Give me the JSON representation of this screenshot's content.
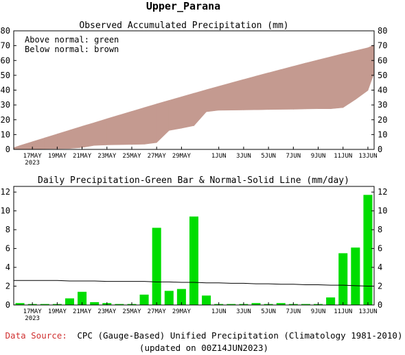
{
  "region_title": "Upper_Parana",
  "footer": {
    "source_label": "Data Source:",
    "source_text": "CPC (Gauge-Based) Unified Precipitation (Climatology 1981-2010)",
    "updated": "(updated on 00Z14JUN2023)"
  },
  "colors": {
    "above_normal": "#00cc00",
    "below_normal": "#c49a90",
    "daily_bar": "#00dd00",
    "source_label": "#d03030"
  },
  "chart_data": [
    {
      "type": "area",
      "title": "Observed Accumulated Precipitation (mm)",
      "annotations": [
        "Above normal: green",
        "Below normal: brown"
      ],
      "xlim": [
        15.5,
        44.5
      ],
      "ylim": [
        0,
        80
      ],
      "yticks": [
        0,
        10,
        20,
        30,
        40,
        50,
        60,
        70,
        80
      ],
      "xticks": [
        {
          "x": 17,
          "label": "17MAY",
          "sublabel": "2023"
        },
        {
          "x": 19,
          "label": "19MAY"
        },
        {
          "x": 21,
          "label": "21MAY"
        },
        {
          "x": 23,
          "label": "23MAY"
        },
        {
          "x": 25,
          "label": "25MAY"
        },
        {
          "x": 27,
          "label": "27MAY"
        },
        {
          "x": 29,
          "label": "29MAY"
        },
        {
          "x": 32,
          "label": "1JUN"
        },
        {
          "x": 34,
          "label": "3JUN"
        },
        {
          "x": 36,
          "label": "5JUN"
        },
        {
          "x": 38,
          "label": "7JUN"
        },
        {
          "x": 40,
          "label": "9JUN"
        },
        {
          "x": 42,
          "label": "11JUN"
        },
        {
          "x": 44,
          "label": "13JUN"
        }
      ],
      "x": [
        15.5,
        16,
        17,
        18,
        19,
        20,
        21,
        22,
        23,
        24,
        25,
        26,
        27,
        28,
        29,
        30,
        31,
        32,
        33,
        34,
        35,
        36,
        37,
        38,
        39,
        40,
        41,
        42,
        43,
        44,
        44.5
      ],
      "series": [
        {
          "name": "Observed",
          "values": [
            0,
            0.1,
            0.3,
            0.4,
            0.5,
            0.6,
            1.3,
            2.7,
            3.0,
            3.2,
            3.3,
            3.5,
            4.6,
            12.8,
            14.3,
            16.0,
            25.4,
            26.4,
            26.5,
            26.6,
            26.7,
            26.9,
            27.0,
            27.1,
            27.3,
            27.4,
            27.4,
            28.2,
            33.7,
            39.8,
            51.5
          ]
        },
        {
          "name": "Normal",
          "values": [
            1.2,
            2.6,
            5.2,
            7.8,
            10.4,
            13.0,
            15.6,
            18.1,
            20.7,
            23.2,
            25.7,
            28.2,
            30.7,
            33.1,
            35.5,
            37.9,
            40.3,
            42.6,
            44.9,
            47.2,
            49.5,
            51.7,
            53.9,
            56.1,
            58.3,
            60.4,
            62.5,
            64.6,
            66.6,
            68.6,
            70.5
          ]
        }
      ]
    },
    {
      "type": "bar",
      "title": "Daily Precipitation-Green Bar & Normal-Solid Line (mm/day)",
      "xlim": [
        15.5,
        44.5
      ],
      "ylim": [
        0,
        12.6
      ],
      "yticks": [
        0,
        2,
        4,
        6,
        8,
        10,
        12
      ],
      "x": [
        15.5,
        16,
        17,
        18,
        19,
        20,
        21,
        22,
        23,
        24,
        25,
        26,
        27,
        28,
        29,
        30,
        31,
        32,
        33,
        34,
        35,
        36,
        37,
        38,
        39,
        40,
        41,
        42,
        43,
        44,
        44.5
      ],
      "series": [
        {
          "name": "Daily",
          "values": [
            0.05,
            0.2,
            0.1,
            0.1,
            0.1,
            0.7,
            1.4,
            0.3,
            0.2,
            0.1,
            0.1,
            1.1,
            8.2,
            1.5,
            1.7,
            9.4,
            1.0,
            0.1,
            0.1,
            0.1,
            0.2,
            0.1,
            0.2,
            0.1,
            0.1,
            0.1,
            0.8,
            5.5,
            6.1,
            11.7,
            0.0
          ]
        },
        {
          "name": "Normal",
          "values": [
            2.6,
            2.6,
            2.6,
            2.6,
            2.6,
            2.55,
            2.55,
            2.55,
            2.5,
            2.5,
            2.5,
            2.5,
            2.45,
            2.45,
            2.4,
            2.4,
            2.35,
            2.35,
            2.3,
            2.3,
            2.25,
            2.25,
            2.2,
            2.2,
            2.15,
            2.15,
            2.1,
            2.1,
            2.05,
            2.0,
            2.0
          ]
        }
      ]
    }
  ]
}
